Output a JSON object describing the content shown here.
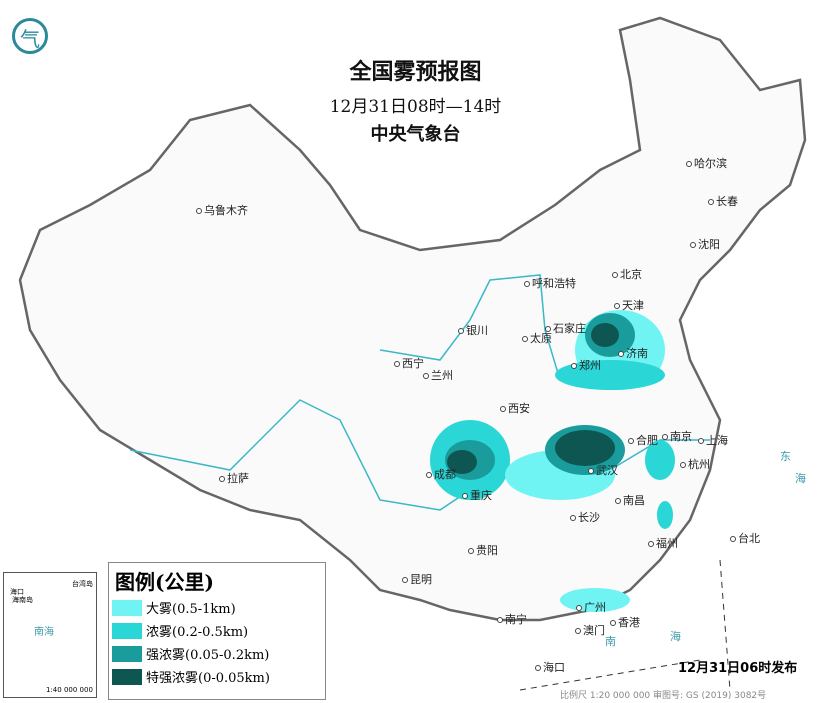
{
  "header": {
    "title": "全国雾预报图",
    "period": "12月31日08时—14时",
    "issuer": "中央气象台"
  },
  "logo": {
    "icon": "cma-logo-icon",
    "text": "气"
  },
  "legend": {
    "title": "图例(公里)",
    "items": [
      {
        "label": "大雾(0.5-1km)",
        "color": "#6ff3f3"
      },
      {
        "label": "浓雾(0.2-0.5km)",
        "color": "#2ad6d6"
      },
      {
        "label": "强浓雾(0.05-0.2km)",
        "color": "#1a9c9c"
      },
      {
        "label": "特强浓雾(0-0.05km)",
        "color": "#0d5652"
      }
    ]
  },
  "cities": [
    "乌鲁木齐",
    "哈尔滨",
    "长春",
    "沈阳",
    "北京",
    "天津",
    "呼和浩特",
    "石家庄",
    "太原",
    "济南",
    "银川",
    "西宁",
    "兰州",
    "郑州",
    "西安",
    "南京",
    "合肥",
    "上海",
    "杭州",
    "成都",
    "武汉",
    "重庆",
    "长沙",
    "南昌",
    "拉萨",
    "贵阳",
    "福州",
    "台北",
    "昆明",
    "南宁",
    "广州",
    "香港",
    "澳门",
    "海口"
  ],
  "inset": {
    "sea": "南海",
    "scale": "1:40 000 000",
    "labels": [
      "海口",
      "海南岛",
      "台湾岛"
    ]
  },
  "sea_labels": [
    "南",
    "海",
    "东",
    "海"
  ],
  "issue_time": "12月31日06时发布",
  "footer": "比例尺 1:20 000 000    审图号: GS (2019) 3082号"
}
